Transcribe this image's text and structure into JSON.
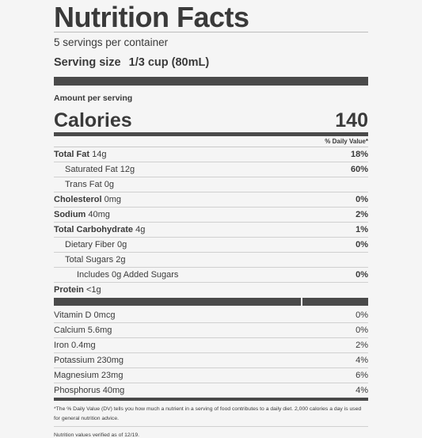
{
  "title": "Nutrition Facts",
  "servings": "5 servings per container",
  "serving_size": {
    "label": "Serving size",
    "value": "1/3 cup (80mL)"
  },
  "amount_per_serving": "Amount per serving",
  "calories": {
    "label": "Calories",
    "value": "140"
  },
  "dv_header": "% Daily Value*",
  "nutrients": [
    {
      "name": "Total Fat",
      "amount": "14g",
      "pct": "18%"
    },
    {
      "name": "Saturated Fat",
      "amount": "12g",
      "pct": "60%"
    },
    {
      "name": "Trans Fat",
      "amount": "0g",
      "pct": ""
    },
    {
      "name": "Cholesterol",
      "amount": "0mg",
      "pct": "0%"
    },
    {
      "name": "Sodium",
      "amount": "40mg",
      "pct": "2%"
    },
    {
      "name": "Total Carbohydrate",
      "amount": "4g",
      "pct": "1%"
    },
    {
      "name": "Dietary Fiber",
      "amount": "0g",
      "pct": "0%"
    },
    {
      "name": "Total Sugars",
      "amount": "2g",
      "pct": ""
    },
    {
      "name": "Includes 0g Added Sugars",
      "amount": "",
      "pct": "0%"
    },
    {
      "name": "Protein",
      "amount": "<1g",
      "pct": ""
    }
  ],
  "vitamins": [
    {
      "name": "Vitamin D 0mcg",
      "pct": "0%"
    },
    {
      "name": "Calcium 5.6mg",
      "pct": "0%"
    },
    {
      "name": "Iron 0.4mg",
      "pct": "2%"
    },
    {
      "name": "Potassium 230mg",
      "pct": "4%"
    },
    {
      "name": "Magnesium 23mg",
      "pct": "6%"
    },
    {
      "name": "Phosphorus 40mg",
      "pct": "4%"
    }
  ],
  "footnote": "*The % Daily Value (DV) tells you how much a nutrient in a serving of food contributes to a daily diet. 2,000 calories a day is used for general nutrition advice.",
  "verified": "Nutrition values verified as of 12/19."
}
